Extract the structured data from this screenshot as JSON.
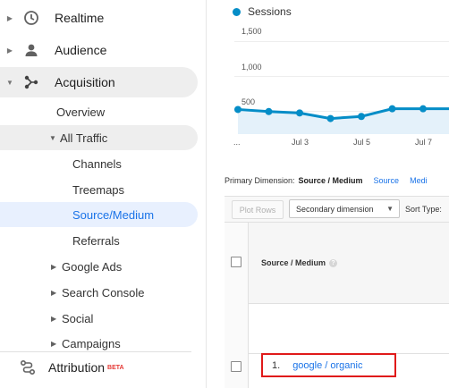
{
  "sidebar": {
    "top_items": [
      {
        "label": "Realtime",
        "icon": "clock-icon"
      },
      {
        "label": "Audience",
        "icon": "person-icon"
      },
      {
        "label": "Acquisition",
        "icon": "acquisition-icon"
      }
    ],
    "acquisition_children": {
      "overview": "Overview",
      "all_traffic": "All Traffic",
      "all_traffic_children": [
        "Channels",
        "Treemaps",
        "Source/Medium",
        "Referrals"
      ],
      "more": [
        "Google Ads",
        "Search Console",
        "Social",
        "Campaigns"
      ]
    },
    "attribution": {
      "label": "Attribution",
      "badge": "BETA"
    }
  },
  "chart": {
    "legend": "Sessions",
    "accent_color": "#058dc7"
  },
  "chart_data": {
    "type": "area",
    "series": [
      {
        "name": "Sessions",
        "values": [
          520,
          490,
          470,
          390,
          420,
          530,
          530,
          530
        ]
      }
    ],
    "x_ticks": [
      "...",
      "Jul 3",
      "Jul 5",
      "Jul 7"
    ],
    "y_ticks": [
      "1,500",
      "1,000",
      "500"
    ],
    "ylim": [
      0,
      1500
    ],
    "grid": true
  },
  "report": {
    "primary_dimension_label": "Primary Dimension:",
    "primary_dimension_selected": "Source / Medium",
    "dimension_links": [
      "Source",
      "Medi"
    ],
    "plot_rows": "Plot Rows",
    "secondary_dimension": "Secondary dimension",
    "sort_type": "Sort Type:",
    "column_header": "Source / Medium",
    "help_glyph": "?",
    "rows": [
      {
        "num": "1.",
        "value": "google / organic"
      }
    ]
  }
}
